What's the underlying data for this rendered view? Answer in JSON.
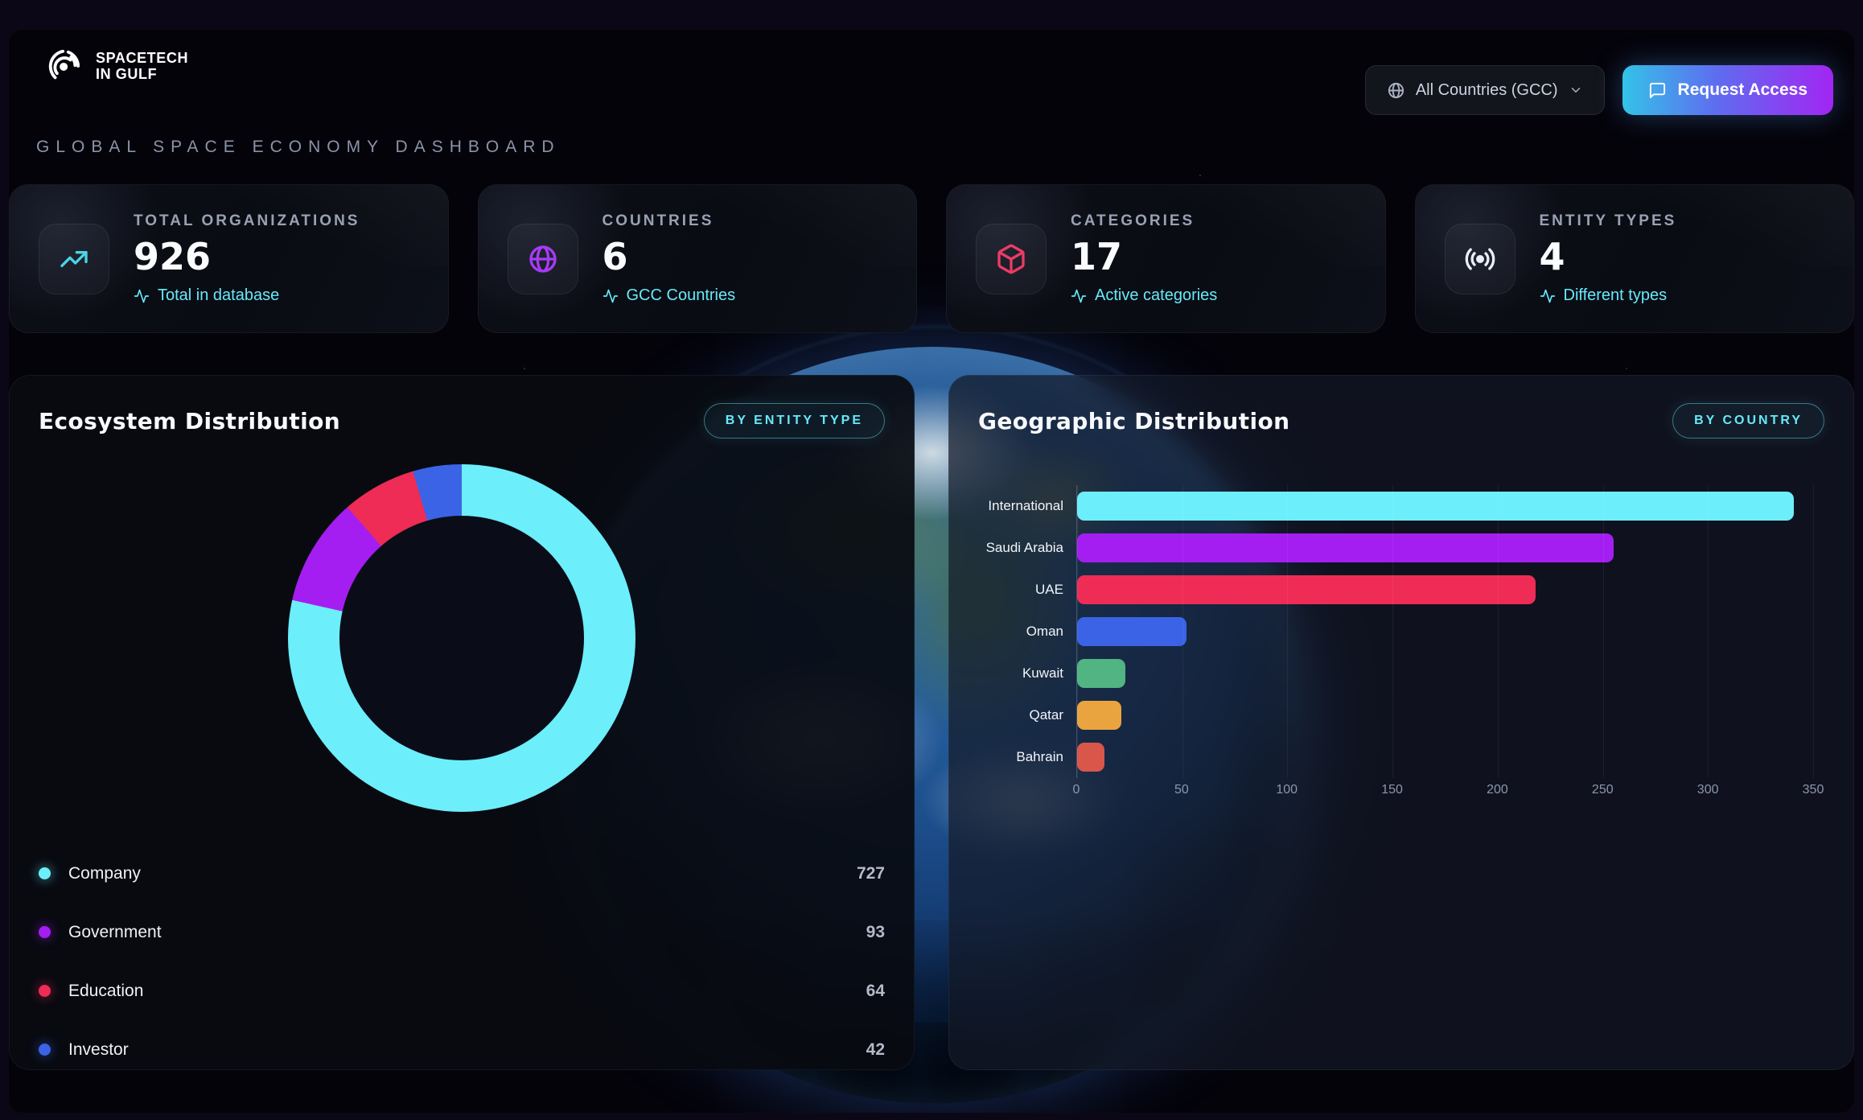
{
  "header": {
    "brand_line1": "SPACETECH",
    "brand_line2": "IN GULF",
    "subtitle": "GLOBAL SPACE ECONOMY DASHBOARD",
    "country_filter_label": "All Countries (GCC)",
    "request_access_label": "Request Access"
  },
  "stats": [
    {
      "label": "TOTAL ORGANIZATIONS",
      "value": "926",
      "sub": "Total in database",
      "icon": "trending-up-icon",
      "accent": "#45d4e6"
    },
    {
      "label": "COUNTRIES",
      "value": "6",
      "sub": "GCC Countries",
      "icon": "globe-icon",
      "accent": "#a732f5"
    },
    {
      "label": "CATEGORIES",
      "value": "17",
      "sub": "Active categories",
      "icon": "cube-icon",
      "accent": "#f1325c"
    },
    {
      "label": "ENTITY TYPES",
      "value": "4",
      "sub": "Different types",
      "icon": "broadcast-icon",
      "accent": "#eef1f8"
    }
  ],
  "panels": {
    "ecosystem": {
      "title": "Ecosystem Distribution",
      "badge": "BY ENTITY TYPE"
    },
    "geographic": {
      "title": "Geographic Distribution",
      "badge": "BY COUNTRY"
    }
  },
  "chart_data": [
    {
      "type": "pie",
      "title": "Ecosystem Distribution",
      "labels": [
        "Company",
        "Government",
        "Education",
        "Investor"
      ],
      "values": [
        727,
        93,
        64,
        42
      ],
      "total": 926,
      "colors": [
        "#6ceefb",
        "#a41ef2",
        "#ee2c55",
        "#3b63e6"
      ],
      "donut": true,
      "legend_position": "bottom"
    },
    {
      "type": "bar",
      "title": "Geographic Distribution",
      "orientation": "horizontal",
      "categories": [
        "International",
        "Saudi Arabia",
        "UAE",
        "Oman",
        "Kuwait",
        "Qatar",
        "Bahrain"
      ],
      "values": [
        341,
        255,
        218,
        52,
        23,
        21,
        13
      ],
      "colors": [
        "#6ceefb",
        "#a41ef2",
        "#ee2c55",
        "#3b63e6",
        "#50b483",
        "#e9a43f",
        "#d9564a"
      ],
      "xlabel": "",
      "ylabel": "",
      "xlim": [
        0,
        350
      ],
      "xticks": [
        "0",
        "50",
        "100",
        "150",
        "200",
        "250",
        "300",
        "350"
      ],
      "grid": true
    }
  ]
}
